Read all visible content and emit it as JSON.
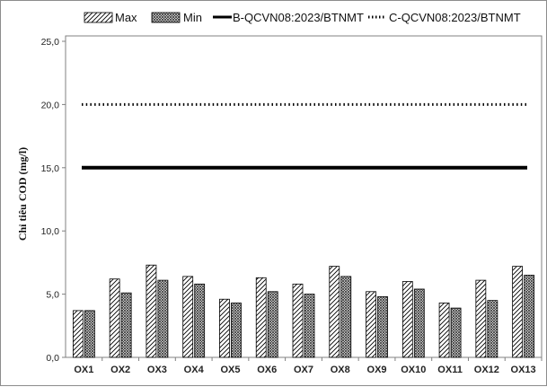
{
  "chart_data": {
    "type": "bar",
    "categories": [
      "OX1",
      "OX2",
      "OX3",
      "OX4",
      "OX5",
      "OX6",
      "OX7",
      "OX8",
      "OX9",
      "OX10",
      "OX11",
      "OX12",
      "OX13"
    ],
    "series": [
      {
        "name": "Max",
        "values": [
          3.7,
          6.2,
          7.3,
          6.4,
          4.6,
          6.3,
          5.8,
          7.2,
          5.2,
          6.0,
          4.3,
          6.1,
          7.2
        ],
        "pattern": "diagonal-hatch"
      },
      {
        "name": "Min",
        "values": [
          3.7,
          5.1,
          6.1,
          5.8,
          4.3,
          5.2,
          5.0,
          6.4,
          4.8,
          5.4,
          3.9,
          4.5,
          6.5
        ],
        "pattern": "crosshatch"
      }
    ],
    "reference_lines": [
      {
        "name": "B-QCVN08:2023/BTNMT",
        "value": 15.0,
        "style": "solid"
      },
      {
        "name": "C-QCVN08:2023/BTNMT",
        "value": 20.0,
        "style": "dotted"
      }
    ],
    "ylabel": "Chỉ tiêu COD (mg/l)",
    "ylim": [
      0,
      25
    ],
    "yticks": [
      "0,0",
      "5,0",
      "10,0",
      "15,0",
      "20,0",
      "25,0"
    ],
    "grid": false,
    "legend_position": "top"
  },
  "colors": {
    "bar_outline": "#000000",
    "reference_line": "#000000",
    "axis": "#808080"
  }
}
